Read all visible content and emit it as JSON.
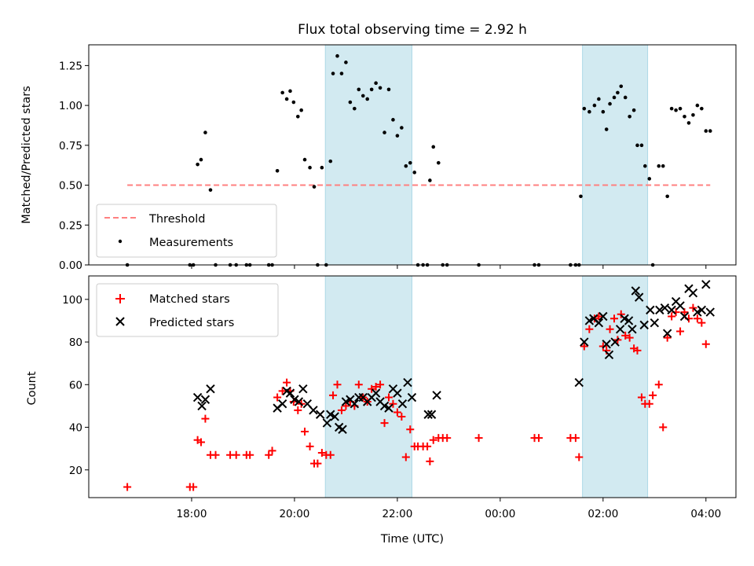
{
  "chart_data": [
    {
      "type": "scatter",
      "title": "Flux total observing time = 2.92 h",
      "ylabel": "Matched/Predicted stars",
      "xlabel": "",
      "x_unit": "UTC time (hours since 00:00 of first day)",
      "xlim": [
        "16:00",
        "04:35"
      ],
      "ylim": [
        0,
        1.38
      ],
      "yticks": [
        "0.00",
        "0.25",
        "0.50",
        "0.75",
        "1.00",
        "1.25"
      ],
      "shaded_intervals": [
        [
          "20:36",
          "22:17"
        ],
        [
          "01:36",
          "02:52"
        ]
      ],
      "shade_color": "#add8e6",
      "legend_position": "lower left",
      "series": [
        {
          "name": "Threshold",
          "style": "dashed line",
          "color": "#ff8080",
          "x_range": [
            "16:45",
            "04:05"
          ],
          "value": 0.5
        },
        {
          "name": "Measurements",
          "style": "dot",
          "color": "#000000",
          "points": [
            [
              "16:45",
              0.0
            ],
            [
              "17:58",
              0.0
            ],
            [
              "18:02",
              0.0
            ],
            [
              "18:07",
              0.63
            ],
            [
              "18:11",
              0.66
            ],
            [
              "18:16",
              0.83
            ],
            [
              "18:22",
              0.47
            ],
            [
              "18:28",
              0.0
            ],
            [
              "18:45",
              0.0
            ],
            [
              "18:52",
              0.0
            ],
            [
              "19:04",
              0.0
            ],
            [
              "19:08",
              0.0
            ],
            [
              "19:30",
              0.0
            ],
            [
              "19:34",
              0.0
            ],
            [
              "19:40",
              0.59
            ],
            [
              "19:46",
              1.08
            ],
            [
              "19:51",
              1.04
            ],
            [
              "19:55",
              1.09
            ],
            [
              "19:59",
              1.02
            ],
            [
              "20:04",
              0.93
            ],
            [
              "20:08",
              0.97
            ],
            [
              "20:12",
              0.66
            ],
            [
              "20:18",
              0.61
            ],
            [
              "20:23",
              0.49
            ],
            [
              "20:27",
              0.0
            ],
            [
              "20:32",
              0.61
            ],
            [
              "20:37",
              0.0
            ],
            [
              "20:42",
              0.65
            ],
            [
              "20:45",
              1.2
            ],
            [
              "20:50",
              1.31
            ],
            [
              "20:55",
              1.2
            ],
            [
              "21:00",
              1.27
            ],
            [
              "21:05",
              1.02
            ],
            [
              "21:10",
              0.98
            ],
            [
              "21:15",
              1.1
            ],
            [
              "21:20",
              1.06
            ],
            [
              "21:25",
              1.04
            ],
            [
              "21:30",
              1.1
            ],
            [
              "21:35",
              1.14
            ],
            [
              "21:40",
              1.11
            ],
            [
              "21:45",
              0.83
            ],
            [
              "21:50",
              1.1
            ],
            [
              "21:55",
              0.91
            ],
            [
              "22:00",
              0.81
            ],
            [
              "22:05",
              0.86
            ],
            [
              "22:10",
              0.62
            ],
            [
              "22:15",
              0.64
            ],
            [
              "22:20",
              0.58
            ],
            [
              "22:24",
              0.0
            ],
            [
              "22:30",
              0.0
            ],
            [
              "22:35",
              0.0
            ],
            [
              "22:38",
              0.53
            ],
            [
              "22:42",
              0.74
            ],
            [
              "22:48",
              0.64
            ],
            [
              "22:53",
              0.0
            ],
            [
              "22:58",
              0.0
            ],
            [
              "23:35",
              0.0
            ],
            [
              "00:40",
              0.0
            ],
            [
              "00:45",
              0.0
            ],
            [
              "01:22",
              0.0
            ],
            [
              "01:28",
              0.0
            ],
            [
              "01:32",
              0.0
            ],
            [
              "01:34",
              0.43
            ],
            [
              "01:38",
              0.98
            ],
            [
              "01:44",
              0.96
            ],
            [
              "01:50",
              1.0
            ],
            [
              "01:55",
              1.04
            ],
            [
              "02:00",
              0.96
            ],
            [
              "02:04",
              0.85
            ],
            [
              "02:08",
              1.01
            ],
            [
              "02:13",
              1.05
            ],
            [
              "02:17",
              1.08
            ],
            [
              "02:21",
              1.12
            ],
            [
              "02:26",
              1.05
            ],
            [
              "02:31",
              0.93
            ],
            [
              "02:36",
              0.97
            ],
            [
              "02:40",
              0.75
            ],
            [
              "02:45",
              0.75
            ],
            [
              "02:49",
              0.62
            ],
            [
              "02:54",
              0.54
            ],
            [
              "02:58",
              0.0
            ],
            [
              "03:05",
              0.62
            ],
            [
              "03:10",
              0.62
            ],
            [
              "03:15",
              0.43
            ],
            [
              "03:20",
              0.98
            ],
            [
              "03:25",
              0.97
            ],
            [
              "03:30",
              0.98
            ],
            [
              "03:35",
              0.93
            ],
            [
              "03:40",
              0.89
            ],
            [
              "03:45",
              0.94
            ],
            [
              "03:50",
              1.0
            ],
            [
              "03:55",
              0.98
            ],
            [
              "04:00",
              0.84
            ],
            [
              "04:05",
              0.84
            ]
          ]
        }
      ]
    },
    {
      "type": "scatter",
      "title": "",
      "ylabel": "Count",
      "xlabel": "Time (UTC)",
      "x_unit": "UTC time (hours since 00:00 of first day)",
      "xlim": [
        "16:00",
        "04:35"
      ],
      "ylim": [
        7,
        111
      ],
      "yticks": [
        "20",
        "40",
        "60",
        "80",
        "100"
      ],
      "xticks": [
        "18:00",
        "20:00",
        "22:00",
        "00:00",
        "02:00",
        "04:00"
      ],
      "shaded_intervals": [
        [
          "20:36",
          "22:17"
        ],
        [
          "01:36",
          "02:52"
        ]
      ],
      "shade_color": "#add8e6",
      "legend_position": "upper left",
      "series": [
        {
          "name": "Matched stars",
          "marker": "+",
          "color": "#ff0000",
          "points": [
            [
              "16:45",
              12
            ],
            [
              "17:58",
              12
            ],
            [
              "18:02",
              12
            ],
            [
              "18:07",
              34
            ],
            [
              "18:11",
              33
            ],
            [
              "18:16",
              44
            ],
            [
              "18:22",
              27
            ],
            [
              "18:28",
              27
            ],
            [
              "18:45",
              27
            ],
            [
              "18:52",
              27
            ],
            [
              "19:04",
              27
            ],
            [
              "19:08",
              27
            ],
            [
              "19:30",
              27
            ],
            [
              "19:34",
              29
            ],
            [
              "19:40",
              54
            ],
            [
              "19:46",
              57
            ],
            [
              "19:51",
              61
            ],
            [
              "19:55",
              57
            ],
            [
              "19:59",
              52
            ],
            [
              "20:04",
              48
            ],
            [
              "20:08",
              51
            ],
            [
              "20:12",
              38
            ],
            [
              "20:18",
              31
            ],
            [
              "20:23",
              23
            ],
            [
              "20:27",
              23
            ],
            [
              "20:32",
              28
            ],
            [
              "20:37",
              27
            ],
            [
              "20:42",
              27
            ],
            [
              "20:45",
              55
            ],
            [
              "20:50",
              60
            ],
            [
              "20:55",
              48
            ],
            [
              "21:00",
              50
            ],
            [
              "21:05",
              52
            ],
            [
              "21:10",
              50
            ],
            [
              "21:15",
              60
            ],
            [
              "21:20",
              54
            ],
            [
              "21:25",
              52
            ],
            [
              "21:30",
              58
            ],
            [
              "21:35",
              59
            ],
            [
              "21:40",
              60
            ],
            [
              "21:45",
              42
            ],
            [
              "21:50",
              54
            ],
            [
              "21:55",
              51
            ],
            [
              "22:00",
              47
            ],
            [
              "22:05",
              45
            ],
            [
              "22:10",
              26
            ],
            [
              "22:15",
              39
            ],
            [
              "22:20",
              31
            ],
            [
              "22:24",
              31
            ],
            [
              "22:30",
              31
            ],
            [
              "22:35",
              31
            ],
            [
              "22:38",
              24
            ],
            [
              "22:42",
              34
            ],
            [
              "22:48",
              35
            ],
            [
              "22:53",
              35
            ],
            [
              "22:58",
              35
            ],
            [
              "23:35",
              35
            ],
            [
              "00:40",
              35
            ],
            [
              "00:45",
              35
            ],
            [
              "01:22",
              35
            ],
            [
              "01:28",
              35
            ],
            [
              "01:32",
              26
            ],
            [
              "01:38",
              78
            ],
            [
              "01:44",
              86
            ],
            [
              "01:50",
              91
            ],
            [
              "01:55",
              92
            ],
            [
              "02:00",
              78
            ],
            [
              "02:04",
              76
            ],
            [
              "02:08",
              86
            ],
            [
              "02:13",
              91
            ],
            [
              "02:17",
              81
            ],
            [
              "02:21",
              93
            ],
            [
              "02:26",
              83
            ],
            [
              "02:31",
              82
            ],
            [
              "02:36",
              77
            ],
            [
              "02:40",
              76
            ],
            [
              "02:45",
              54
            ],
            [
              "02:49",
              51
            ],
            [
              "02:54",
              51
            ],
            [
              "02:58",
              55
            ],
            [
              "03:05",
              60
            ],
            [
              "03:10",
              40
            ],
            [
              "03:15",
              82
            ],
            [
              "03:20",
              92
            ],
            [
              "03:25",
              94
            ],
            [
              "03:30",
              85
            ],
            [
              "03:35",
              94
            ],
            [
              "03:40",
              91
            ],
            [
              "03:45",
              96
            ],
            [
              "03:50",
              91
            ],
            [
              "03:55",
              89
            ],
            [
              "04:00",
              79
            ]
          ]
        },
        {
          "name": "Predicted stars",
          "marker": "x",
          "color": "#000000",
          "points": [
            [
              "18:07",
              54
            ],
            [
              "18:12",
              50
            ],
            [
              "18:16",
              53
            ],
            [
              "18:22",
              58
            ],
            [
              "19:40",
              49
            ],
            [
              "19:46",
              51
            ],
            [
              "19:51",
              57
            ],
            [
              "19:55",
              56
            ],
            [
              "20:00",
              53
            ],
            [
              "20:05",
              52
            ],
            [
              "20:10",
              58
            ],
            [
              "20:15",
              51
            ],
            [
              "20:22",
              48
            ],
            [
              "20:30",
              46
            ],
            [
              "20:38",
              42
            ],
            [
              "20:42",
              46
            ],
            [
              "20:47",
              45
            ],
            [
              "20:52",
              40
            ],
            [
              "20:56",
              39
            ],
            [
              "21:00",
              52
            ],
            [
              "21:05",
              53
            ],
            [
              "21:10",
              51
            ],
            [
              "21:15",
              54
            ],
            [
              "21:20",
              54
            ],
            [
              "21:25",
              52
            ],
            [
              "21:30",
              54
            ],
            [
              "21:35",
              56
            ],
            [
              "21:40",
              52
            ],
            [
              "21:45",
              50
            ],
            [
              "21:50",
              49
            ],
            [
              "21:55",
              58
            ],
            [
              "22:00",
              56
            ],
            [
              "22:06",
              51
            ],
            [
              "22:12",
              61
            ],
            [
              "22:17",
              54
            ],
            [
              "22:36",
              46
            ],
            [
              "22:40",
              46
            ],
            [
              "22:46",
              55
            ],
            [
              "01:32",
              61
            ],
            [
              "01:38",
              80
            ],
            [
              "01:44",
              90
            ],
            [
              "01:49",
              91
            ],
            [
              "01:55",
              89
            ],
            [
              "02:00",
              92
            ],
            [
              "02:04",
              79
            ],
            [
              "02:07",
              74
            ],
            [
              "02:14",
              80
            ],
            [
              "02:20",
              86
            ],
            [
              "02:25",
              91
            ],
            [
              "02:30",
              90
            ],
            [
              "02:34",
              86
            ],
            [
              "02:38",
              104
            ],
            [
              "02:42",
              101
            ],
            [
              "02:48",
              88
            ],
            [
              "02:55",
              95
            ],
            [
              "03:00",
              89
            ],
            [
              "03:06",
              95
            ],
            [
              "03:12",
              96
            ],
            [
              "03:15",
              84
            ],
            [
              "03:20",
              95
            ],
            [
              "03:25",
              99
            ],
            [
              "03:30",
              97
            ],
            [
              "03:35",
              92
            ],
            [
              "03:40",
              105
            ],
            [
              "03:45",
              103
            ],
            [
              "03:50",
              94
            ],
            [
              "03:55",
              95
            ],
            [
              "04:00",
              107
            ],
            [
              "04:05",
              94
            ]
          ]
        }
      ]
    }
  ]
}
